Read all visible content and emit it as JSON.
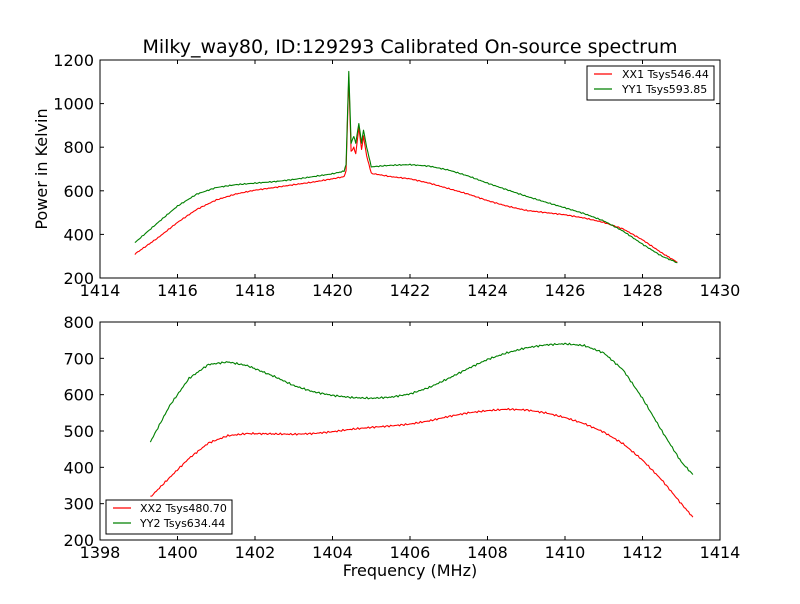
{
  "colors": {
    "red": "#ff0000",
    "green": "#008000",
    "axes": "#000000",
    "background": "#ffffff"
  },
  "chart_data": [
    {
      "type": "line",
      "title": "Milky_way80, ID:129293 Calibrated On-source spectrum",
      "xlabel": "",
      "ylabel": "Power in Kelvin",
      "xlim": [
        1414,
        1430
      ],
      "ylim": [
        200,
        1200
      ],
      "xticks": [
        "1414",
        "1416",
        "1418",
        "1420",
        "1422",
        "1424",
        "1426",
        "1428",
        "1430"
      ],
      "yticks": [
        "200",
        "400",
        "600",
        "800",
        "1000",
        "1200"
      ],
      "grid": false,
      "legend_position": "upper right",
      "series": [
        {
          "name": "XX1 Tsys546.44",
          "color": "#ff0000",
          "x": [
            1414.9,
            1415.5,
            1416.0,
            1416.5,
            1417.0,
            1417.5,
            1418.0,
            1418.5,
            1419.0,
            1419.5,
            1420.0,
            1420.3,
            1420.35,
            1420.42,
            1420.48,
            1420.55,
            1420.6,
            1420.68,
            1420.75,
            1420.8,
            1420.88,
            1421.0,
            1421.5,
            1422.0,
            1422.5,
            1423.0,
            1423.5,
            1424.0,
            1424.5,
            1425.0,
            1425.5,
            1426.0,
            1426.5,
            1427.0,
            1427.5,
            1428.0,
            1428.5,
            1428.9
          ],
          "y": [
            310,
            385,
            455,
            515,
            558,
            585,
            603,
            615,
            628,
            640,
            655,
            665,
            690,
            1120,
            780,
            800,
            770,
            890,
            790,
            850,
            760,
            680,
            665,
            655,
            635,
            610,
            585,
            555,
            530,
            510,
            500,
            490,
            475,
            455,
            425,
            375,
            315,
            272
          ]
        },
        {
          "name": "YY1 Tsys593.85",
          "color": "#008000",
          "x": [
            1414.9,
            1415.5,
            1416.0,
            1416.5,
            1417.0,
            1417.5,
            1418.0,
            1418.5,
            1419.0,
            1419.5,
            1420.0,
            1420.3,
            1420.35,
            1420.42,
            1420.48,
            1420.55,
            1420.6,
            1420.68,
            1420.75,
            1420.8,
            1420.88,
            1421.0,
            1421.5,
            1422.0,
            1422.5,
            1423.0,
            1423.5,
            1424.0,
            1424.5,
            1425.0,
            1425.5,
            1426.0,
            1426.5,
            1427.0,
            1427.5,
            1428.0,
            1428.5,
            1428.9
          ],
          "y": [
            362,
            455,
            530,
            585,
            615,
            628,
            635,
            642,
            652,
            665,
            678,
            690,
            720,
            1150,
            820,
            850,
            820,
            910,
            820,
            880,
            800,
            710,
            717,
            720,
            713,
            695,
            668,
            635,
            605,
            575,
            548,
            522,
            495,
            462,
            415,
            355,
            300,
            270
          ]
        }
      ]
    },
    {
      "type": "line",
      "title": "",
      "xlabel": "Frequency (MHz)",
      "ylabel": "",
      "xlim": [
        1398,
        1414
      ],
      "ylim": [
        200,
        800
      ],
      "xticks": [
        "1398",
        "1400",
        "1402",
        "1404",
        "1406",
        "1408",
        "1410",
        "1412",
        "1414"
      ],
      "yticks": [
        "200",
        "300",
        "400",
        "500",
        "600",
        "700",
        "800"
      ],
      "grid": false,
      "legend_position": "lower left",
      "series": [
        {
          "name": "XX2 Tsys480.70",
          "color": "#ff0000",
          "x": [
            1399.3,
            1399.8,
            1400.3,
            1400.8,
            1401.3,
            1401.8,
            1402.5,
            1403.0,
            1403.5,
            1404.0,
            1404.5,
            1405.0,
            1405.5,
            1406.0,
            1406.5,
            1407.0,
            1407.5,
            1408.0,
            1408.5,
            1409.0,
            1409.5,
            1410.0,
            1410.5,
            1411.0,
            1411.5,
            1412.0,
            1412.5,
            1413.0,
            1413.3
          ],
          "y": [
            318,
            372,
            425,
            467,
            487,
            493,
            492,
            491,
            493,
            498,
            505,
            510,
            514,
            519,
            528,
            540,
            550,
            556,
            560,
            558,
            550,
            537,
            520,
            497,
            465,
            420,
            365,
            300,
            263
          ]
        },
        {
          "name": "YY2 Tsys634.44",
          "color": "#008000",
          "x": [
            1399.3,
            1399.8,
            1400.3,
            1400.8,
            1401.3,
            1401.8,
            1402.5,
            1403.0,
            1403.5,
            1404.0,
            1404.5,
            1405.0,
            1405.5,
            1406.0,
            1406.5,
            1407.0,
            1407.5,
            1408.0,
            1408.5,
            1409.0,
            1409.5,
            1410.0,
            1410.5,
            1411.0,
            1411.5,
            1412.0,
            1412.5,
            1413.0,
            1413.3
          ],
          "y": [
            470,
            570,
            645,
            683,
            690,
            680,
            650,
            625,
            608,
            598,
            592,
            590,
            593,
            602,
            620,
            645,
            672,
            697,
            715,
            729,
            737,
            740,
            735,
            715,
            668,
            590,
            500,
            415,
            380
          ]
        }
      ]
    }
  ]
}
